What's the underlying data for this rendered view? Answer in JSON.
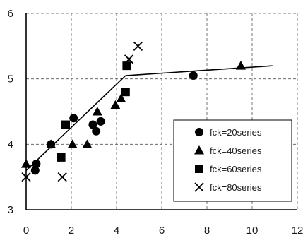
{
  "chart_data": {
    "type": "scatter",
    "title": "",
    "xlabel": "",
    "ylabel": "",
    "xlim": [
      0,
      12
    ],
    "ylim": [
      3,
      6
    ],
    "x_ticks": [
      0,
      2,
      4,
      6,
      8,
      10,
      12
    ],
    "y_ticks": [
      3,
      4,
      5,
      6
    ],
    "grid": true,
    "legend_position": "bottom-right",
    "series": [
      {
        "name": "fck=20series",
        "marker": "circle",
        "points": [
          [
            0.4,
            3.6
          ],
          [
            0.45,
            3.7
          ],
          [
            1.1,
            4.0
          ],
          [
            2.1,
            4.4
          ],
          [
            2.95,
            4.3
          ],
          [
            3.1,
            4.2
          ],
          [
            3.3,
            4.35
          ],
          [
            7.4,
            5.05
          ]
        ]
      },
      {
        "name": "fck=40series",
        "marker": "triangle",
        "points": [
          [
            0.0,
            3.7
          ],
          [
            1.1,
            4.0
          ],
          [
            2.05,
            4.0
          ],
          [
            2.7,
            4.0
          ],
          [
            3.15,
            4.5
          ],
          [
            3.95,
            4.6
          ],
          [
            4.2,
            4.7
          ],
          [
            9.5,
            5.2
          ]
        ]
      },
      {
        "name": "fck=60series",
        "marker": "square",
        "points": [
          [
            1.55,
            3.8
          ],
          [
            1.75,
            4.3
          ],
          [
            4.4,
            4.8
          ],
          [
            4.45,
            5.2
          ]
        ]
      },
      {
        "name": "fck=80series",
        "marker": "cross",
        "points": [
          [
            0.0,
            3.5
          ],
          [
            1.6,
            3.5
          ],
          [
            4.55,
            5.3
          ],
          [
            4.95,
            5.5
          ]
        ]
      }
    ],
    "fit_lines": [
      {
        "points": [
          [
            0.0,
            3.6
          ],
          [
            4.4,
            5.05
          ]
        ]
      },
      {
        "points": [
          [
            4.4,
            5.05
          ],
          [
            10.9,
            5.2
          ]
        ]
      }
    ]
  }
}
